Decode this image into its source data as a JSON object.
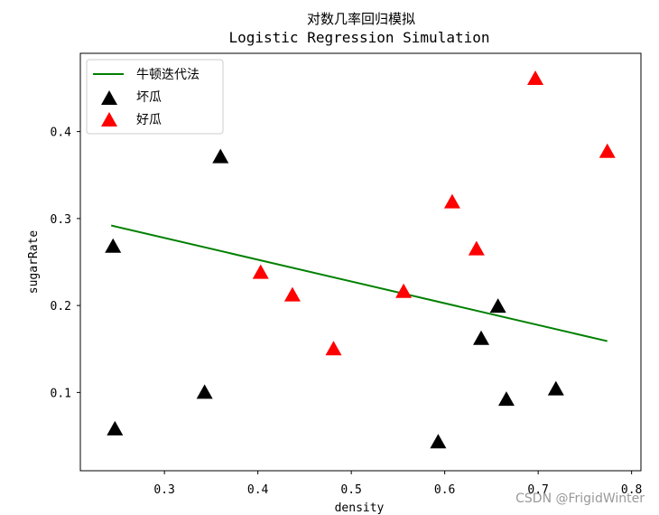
{
  "chart_data": {
    "type": "scatter",
    "title": "对数几率回归模拟",
    "subtitle": "Logistic Regression Simulation",
    "xlabel": "density",
    "ylabel": "sugarRate",
    "xlim": [
      0.21,
      0.81
    ],
    "ylim": [
      0.01,
      0.49
    ],
    "xticks": [
      0.3,
      0.4,
      0.5,
      0.6,
      0.7,
      0.8
    ],
    "yticks": [
      0.1,
      0.2,
      0.3,
      0.4
    ],
    "xtick_labels": [
      "0.3",
      "0.4",
      "0.5",
      "0.6",
      "0.7",
      "0.8"
    ],
    "ytick_labels": [
      "0.1",
      "0.2",
      "0.3",
      "0.4"
    ],
    "grid": false,
    "legend_placement": "top-left",
    "series": [
      {
        "name": "牛顿迭代法",
        "kind": "line",
        "color": "#008000",
        "x": [
          0.243,
          0.774
        ],
        "y": [
          0.292,
          0.159
        ]
      },
      {
        "name": "坏瓜",
        "kind": "scatter",
        "marker": "triangle",
        "color": "#000000",
        "x": [
          0.245,
          0.247,
          0.343,
          0.36,
          0.593,
          0.639,
          0.657,
          0.666,
          0.719
        ],
        "y": [
          0.267,
          0.057,
          0.099,
          0.37,
          0.042,
          0.161,
          0.198,
          0.091,
          0.103
        ]
      },
      {
        "name": "好瓜",
        "kind": "scatter",
        "marker": "triangle",
        "color": "#ff0000",
        "x": [
          0.403,
          0.437,
          0.481,
          0.556,
          0.608,
          0.634,
          0.697,
          0.774
        ],
        "y": [
          0.237,
          0.211,
          0.149,
          0.215,
          0.318,
          0.264,
          0.46,
          0.376
        ]
      }
    ]
  },
  "watermark": "CSDN @FrigidWinter"
}
